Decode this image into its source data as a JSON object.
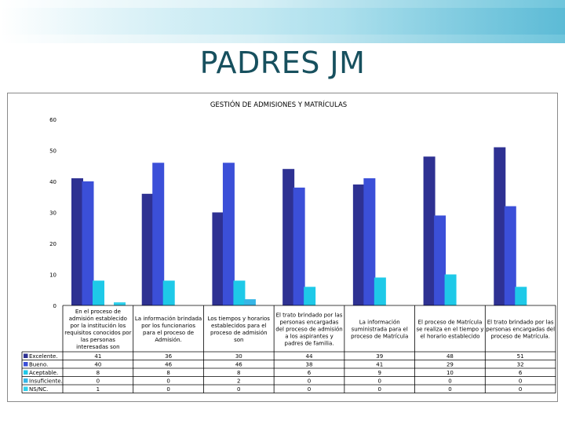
{
  "slide": {
    "title": "PADRES JM"
  },
  "chart_data": {
    "type": "bar",
    "title": "GESTIÓN DE ADMISIONES Y MATRÍCULAS",
    "xlabel": "",
    "ylabel": "",
    "ylim": [
      0,
      60
    ],
    "yticks": [
      0,
      10,
      20,
      30,
      40,
      50,
      60
    ],
    "grid": false,
    "legend": "table-left",
    "categories": [
      [
        "En el proceso de",
        "admisión establecido",
        "por la institución los",
        "requisitos conocidos por",
        "las personas",
        "interesadas son"
      ],
      [
        "La información brindada",
        "por los funcionarios",
        "para el proceso de",
        "Admisión."
      ],
      [
        "Los tiempos y horarios",
        "establecidos para el",
        "proceso de admisión",
        "son"
      ],
      [
        "El trato brindado por las",
        "personas encargadas",
        "del proceso de admisión",
        "a los aspirantes y",
        "padres de familia."
      ],
      [
        "La información",
        "suministrada para el",
        "proceso de Matrícula"
      ],
      [
        "El proceso de Matrícula",
        "se realiza en el tiempo y",
        "el horario establecido"
      ],
      [
        "El trato brindado por las",
        "personas encargadas del",
        "proceso de Matrícula."
      ]
    ],
    "series": [
      {
        "name": "Excelente.",
        "color": "#2e3192",
        "values": [
          41,
          36,
          30,
          44,
          39,
          48,
          51
        ]
      },
      {
        "name": "Bueno.",
        "color": "#3b4fd8",
        "values": [
          40,
          46,
          46,
          38,
          41,
          29,
          32
        ]
      },
      {
        "name": "Aceptable.",
        "color": "#1ec9e8",
        "values": [
          8,
          8,
          8,
          6,
          9,
          10,
          6
        ]
      },
      {
        "name": "Insuficiente.",
        "color": "#36b6e6",
        "values": [
          0,
          0,
          2,
          0,
          0,
          0,
          0
        ]
      },
      {
        "name": "NS/NC.",
        "color": "#2fd0ec",
        "values": [
          1,
          0,
          0,
          0,
          0,
          0,
          0
        ]
      }
    ]
  }
}
